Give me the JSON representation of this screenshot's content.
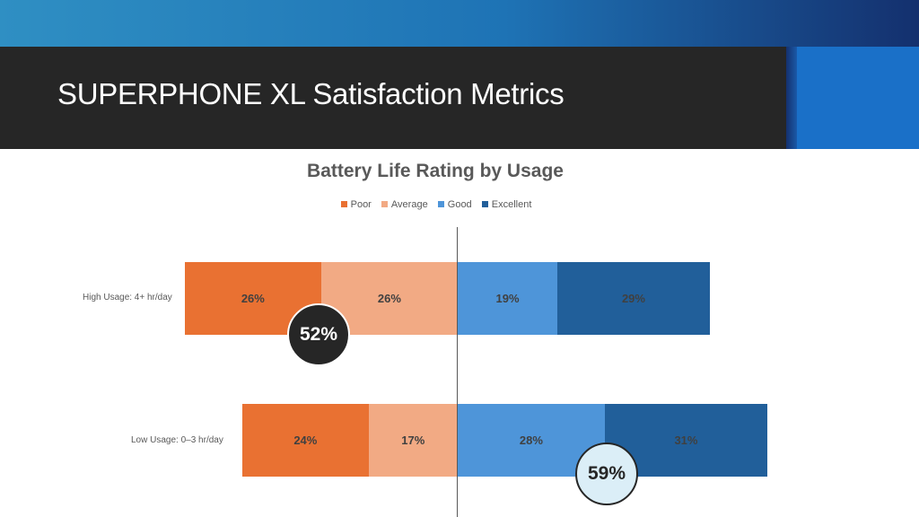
{
  "slide": {
    "title": "SUPERPHONE XL Satisfaction Metrics"
  },
  "colors": {
    "poor": "#e97132",
    "average": "#f2aa84",
    "good": "#4e95d9",
    "excellent": "#215f9a"
  },
  "chart_data": {
    "type": "bar",
    "orientation": "horizontal",
    "stacking": "diverging",
    "title": "Battery Life Rating by Usage",
    "legend_position": "top",
    "categories": [
      "High Usage: 4+ hr/day",
      "Low Usage: 0–3 hr/day"
    ],
    "series": [
      {
        "name": "Poor",
        "values": [
          26,
          24
        ],
        "labels": [
          "26%",
          "24%"
        ]
      },
      {
        "name": "Average",
        "values": [
          26,
          17
        ],
        "labels": [
          "26%",
          "17%"
        ]
      },
      {
        "name": "Good",
        "values": [
          19,
          28
        ],
        "labels": [
          "19%",
          "28%"
        ]
      },
      {
        "name": "Excellent",
        "values": [
          29,
          31
        ],
        "labels": [
          "29%",
          "31%"
        ]
      }
    ],
    "callouts": [
      {
        "category": "High Usage: 4+ hr/day",
        "text": "52%",
        "meaning": "Poor + Average"
      },
      {
        "category": "Low Usage: 0–3 hr/day",
        "text": "59%",
        "meaning": "Good + Excellent"
      }
    ]
  }
}
